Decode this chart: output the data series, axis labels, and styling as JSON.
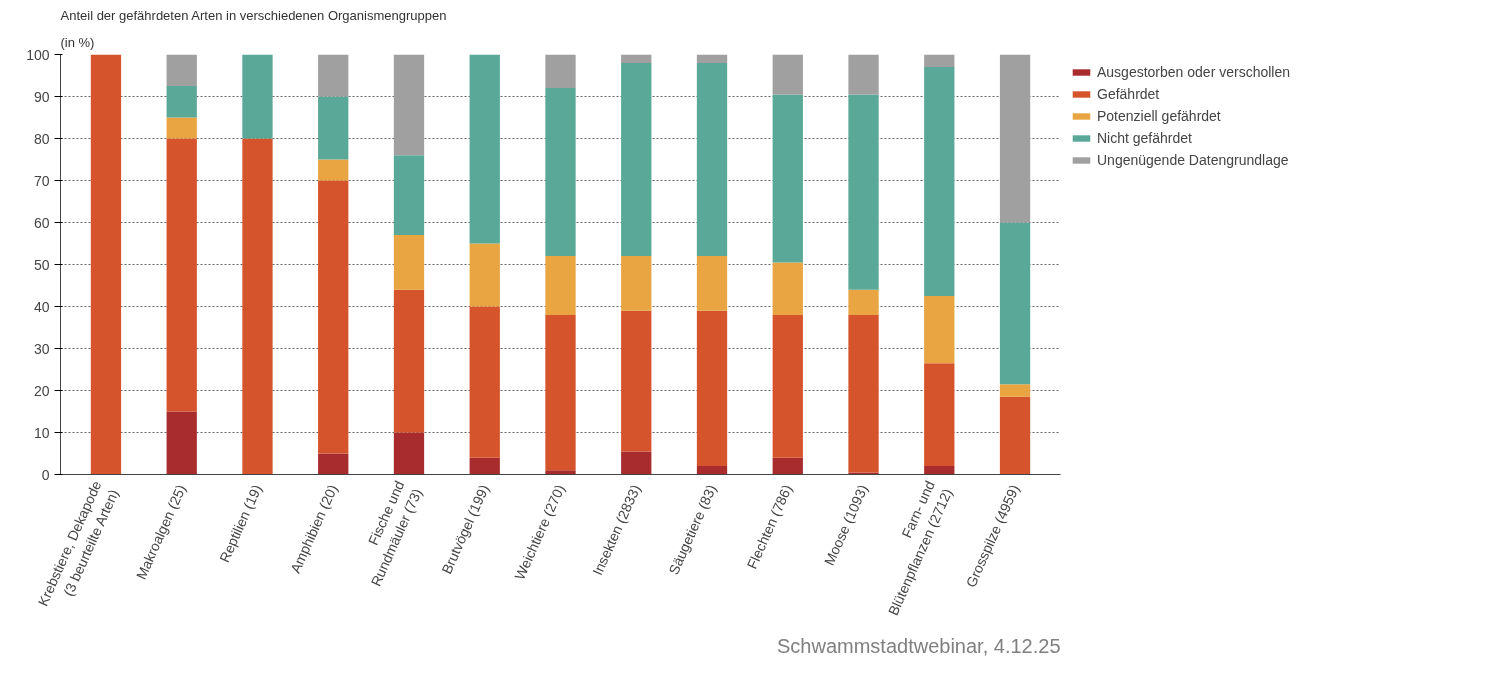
{
  "chart_data": {
    "type": "bar",
    "stacked": true,
    "title": "Anteil der gefährdeten Arten in verschiedenen Organismengruppen",
    "subtitle": "(in %)",
    "categories": [
      "Krebstiere, Dekapode\n(3 beurteilte Arten)",
      "Makroalgen (25)",
      "Reptilien (19)",
      "Amphibien (20)",
      "Fische und\nRundmäuler (73)",
      "Brutvögel (199)",
      "Weichtiere (270)",
      "Insekten (2833)",
      "Säugetiere (83)",
      "Flechten (786)",
      "Moose (1093)",
      "Farn- und\nBlütenpflanzen (2712)",
      "Grosspilze (4959)"
    ],
    "series": [
      {
        "name": "Ausgestorben oder verschollen",
        "color": "#a82c2e",
        "values": [
          0,
          15,
          0,
          5,
          10,
          4,
          1,
          5.5,
          2,
          4,
          0.5,
          2,
          0
        ]
      },
      {
        "name": "Gefährdet",
        "color": "#d6542c",
        "values": [
          100,
          65,
          80,
          65,
          34,
          36,
          37,
          33.5,
          37,
          34,
          37.5,
          24.5,
          18.5
        ]
      },
      {
        "name": "Potenziell gefährdet",
        "color": "#e8a542",
        "values": [
          0,
          5,
          0,
          5,
          13,
          15,
          14,
          13,
          13,
          12.5,
          6,
          16,
          3
        ]
      },
      {
        "name": "Nicht gefährdet",
        "color": "#5aa898",
        "values": [
          0,
          7.5,
          20,
          15,
          19,
          45,
          40,
          46,
          46,
          40,
          46.5,
          54.5,
          38.5
        ]
      },
      {
        "name": "Ungenügende Datengrundlage",
        "color": "#a0a0a0",
        "values": [
          0,
          7.5,
          0,
          10,
          24,
          0,
          8,
          2,
          2,
          9.5,
          9.5,
          3,
          40
        ]
      }
    ],
    "ylim": [
      0,
      100
    ],
    "yticks": [
      0,
      10,
      20,
      30,
      40,
      50,
      60,
      70,
      80,
      90,
      100
    ],
    "grid": "y",
    "legend": "top right",
    "annotations": [
      "Schwammstadtwebinar, 4.12.25"
    ]
  }
}
